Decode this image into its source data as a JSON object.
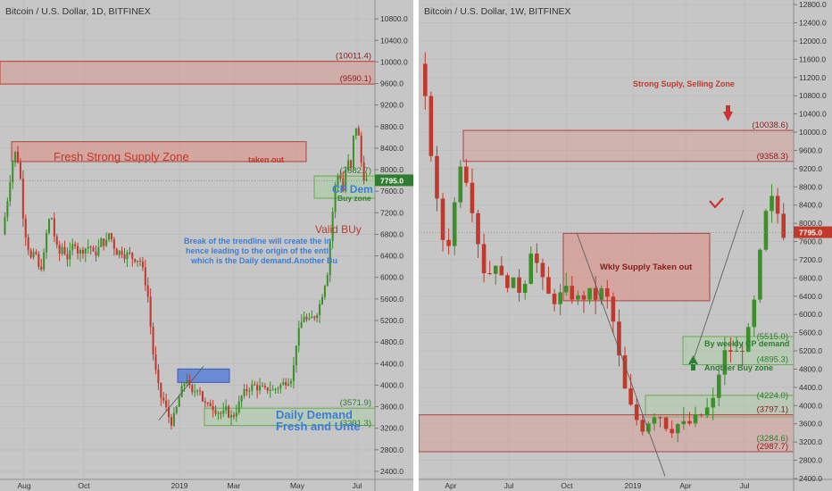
{
  "chart_data": [
    {
      "type": "candlestick",
      "title": "Bitcoin / U.S. Dollar, 1D, BITFINEX",
      "yticks": [
        2400,
        2800,
        3200,
        3600,
        4000,
        4400,
        4800,
        5200,
        5600,
        6000,
        6400,
        6800,
        7200,
        7600,
        8000,
        8400,
        8800,
        9200,
        9600,
        10000,
        10400,
        10800
      ],
      "ytick_labels": [
        "2400.0",
        "2800.0",
        "3200.0",
        "3600.0",
        "4000.0",
        "4400.0",
        "4800.0",
        "5200.0",
        "5600.0",
        "6000.0",
        "6400.0",
        "6800.0",
        "7200.0",
        "7600.0",
        "8000.0",
        "8400.0",
        "8800.0",
        "9200.0",
        "9600.0",
        "10000.0",
        "10400.0",
        "10800.0"
      ],
      "ylim": [
        2250,
        11150
      ],
      "xlabels": [
        "Aug",
        "Oct",
        "2019",
        "Mar",
        "May",
        "Jul"
      ],
      "last_price": 7795.0,
      "last_price_label": "7795.0",
      "level_labels": [
        {
          "text": "(10011.4)",
          "value": 10011.4
        },
        {
          "text": "(9590.1)",
          "value": 9590.1
        },
        {
          "text": "(7882.7)",
          "value": 7882.7
        },
        {
          "text": "(3571.9)",
          "value": 3571.9
        },
        {
          "text": "(3291.3)",
          "value": 3291.3
        }
      ],
      "zones": [
        {
          "name": "top-supply",
          "from": 9590.1,
          "to": 10011.4
        },
        {
          "name": "fresh-supply",
          "from": 8150,
          "to": 8520
        },
        {
          "name": "cp-demand",
          "from": 7470,
          "to": 7882.7
        },
        {
          "name": "range-box",
          "from": 4050,
          "to": 4300
        },
        {
          "name": "daily-demand",
          "from": 3250,
          "to": 3571.9
        }
      ],
      "annotations": [
        {
          "text": "Fresh Strong Supply Zone"
        },
        {
          "text": "taken out"
        },
        {
          "text": "CP Dem"
        },
        {
          "text": "Buy zone"
        },
        {
          "text": "Valid BUy"
        },
        {
          "text": "Break of the trendline will create the in"
        },
        {
          "text": "hence leading to the origin of the entir"
        },
        {
          "text": "which is the Daily demand.Another Bu"
        },
        {
          "text": "Daily Demand"
        },
        {
          "text": "Fresh and Unte"
        }
      ],
      "price_path": [
        [
          0,
          6800
        ],
        [
          5,
          7400
        ],
        [
          10,
          8100
        ],
        [
          14,
          8350
        ],
        [
          18,
          8000
        ],
        [
          22,
          7000
        ],
        [
          26,
          6600
        ],
        [
          30,
          6300
        ],
        [
          34,
          6500
        ],
        [
          38,
          6100
        ],
        [
          42,
          6300
        ],
        [
          46,
          6900
        ],
        [
          50,
          7200
        ],
        [
          54,
          6700
        ],
        [
          58,
          6400
        ],
        [
          62,
          6600
        ],
        [
          66,
          6350
        ],
        [
          70,
          6450
        ],
        [
          74,
          6700
        ],
        [
          78,
          6450
        ],
        [
          82,
          6500
        ],
        [
          86,
          6550
        ],
        [
          90,
          6600
        ],
        [
          94,
          6400
        ],
        [
          98,
          6500
        ],
        [
          102,
          6700
        ],
        [
          106,
          6600
        ],
        [
          110,
          6850
        ],
        [
          114,
          6600
        ],
        [
          118,
          6450
        ],
        [
          122,
          6500
        ],
        [
          126,
          6400
        ],
        [
          130,
          6450
        ],
        [
          134,
          6350
        ],
        [
          138,
          6350
        ],
        [
          142,
          6300
        ],
        [
          146,
          6000
        ],
        [
          150,
          5600
        ],
        [
          154,
          4700
        ],
        [
          158,
          4200
        ],
        [
          162,
          3800
        ],
        [
          166,
          3700
        ],
        [
          170,
          3450
        ],
        [
          174,
          3300
        ],
        [
          178,
          3500
        ],
        [
          182,
          3800
        ],
        [
          186,
          4000
        ],
        [
          190,
          4150
        ],
        [
          194,
          3800
        ],
        [
          198,
          3900
        ],
        [
          202,
          4000
        ],
        [
          206,
          3700
        ],
        [
          210,
          3600
        ],
        [
          214,
          3650
        ],
        [
          218,
          3550
        ],
        [
          222,
          3500
        ],
        [
          226,
          3450
        ],
        [
          230,
          3550
        ],
        [
          234,
          3400
        ],
        [
          238,
          3450
        ],
        [
          242,
          3600
        ],
        [
          246,
          3800
        ],
        [
          250,
          3900
        ],
        [
          254,
          3950
        ],
        [
          258,
          4000
        ],
        [
          262,
          3950
        ],
        [
          266,
          3950
        ],
        [
          270,
          3900
        ],
        [
          274,
          3950
        ],
        [
          278,
          3900
        ],
        [
          282,
          3950
        ],
        [
          286,
          4000
        ],
        [
          290,
          4050
        ],
        [
          294,
          4100
        ],
        [
          298,
          4150
        ],
        [
          302,
          4800
        ],
        [
          306,
          5100
        ],
        [
          310,
          5300
        ],
        [
          314,
          5150
        ],
        [
          318,
          5250
        ],
        [
          322,
          5300
        ],
        [
          326,
          5500
        ],
        [
          330,
          5800
        ],
        [
          334,
          6100
        ],
        [
          338,
          7000
        ],
        [
          342,
          7700
        ],
        [
          346,
          8000
        ],
        [
          350,
          7600
        ],
        [
          354,
          8200
        ],
        [
          358,
          8000
        ],
        [
          362,
          8900
        ],
        [
          366,
          8600
        ],
        [
          370,
          7900
        ],
        [
          374,
          7795
        ]
      ]
    },
    {
      "type": "candlestick",
      "title": "Bitcoin / U.S. Dollar, 1W, BITFINEX",
      "yticks": [
        2400,
        2800,
        3200,
        3600,
        4000,
        4400,
        4800,
        5200,
        5600,
        6000,
        6400,
        6800,
        7200,
        7600,
        8000,
        8400,
        8800,
        9200,
        9600,
        10000,
        10400,
        10800,
        11200,
        11600,
        12000,
        12400,
        12800
      ],
      "ytick_labels": [
        "2400.0",
        "2800.0",
        "3200.0",
        "3600.0",
        "4000.0",
        "4400.0",
        "4800.0",
        "5200.0",
        "5600.0",
        "6000.0",
        "6400.0",
        "6800.0",
        "7200.0",
        "7600.0",
        "8000.0",
        "8400.0",
        "8800.0",
        "9200.0",
        "9600.0",
        "10000.0",
        "10400.0",
        "10800.0",
        "11200.0",
        "11600.0",
        "12000.0",
        "12400.0",
        "12800.0"
      ],
      "ylim": [
        2380,
        12900
      ],
      "xlabels": [
        "Apr",
        "Jul",
        "Oct",
        "2019",
        "Apr",
        "Jul"
      ],
      "last_price": 7795.0,
      "last_price_label": "7795.0",
      "level_labels": [
        {
          "text": "(10038.6)",
          "value": 10038.6
        },
        {
          "text": "(9358.3)",
          "value": 9358.3
        },
        {
          "text": "(5515.0)",
          "value": 5515.0
        },
        {
          "text": "(4895.3)",
          "value": 4895.3
        },
        {
          "text": "(4224.0)",
          "value": 4224.0
        },
        {
          "text": "(3797.1)",
          "value": 3797.1
        },
        {
          "text": "(3284.6)",
          "value": 3284.6
        },
        {
          "text": "(2987.7)",
          "value": 2987.7
        }
      ],
      "zones": [
        {
          "name": "strong-supply",
          "from": 9358.3,
          "to": 10038.6
        },
        {
          "name": "weekly-supply",
          "from": 6300,
          "to": 7780
        },
        {
          "name": "weekly-cp-demand",
          "from": 4895.3,
          "to": 5515.0
        },
        {
          "name": "green-demand",
          "from": 3750,
          "to": 4224.0
        },
        {
          "name": "lower-demand",
          "from": 2987.7,
          "to": 3797.1
        }
      ],
      "annotations": [
        {
          "text": "Strong Suply, Selling Zone"
        },
        {
          "text": "Wkly Supply Taken out"
        },
        {
          "text": "By weekly CP demand"
        },
        {
          "text": "Another Buy zone"
        }
      ],
      "price_path": [
        [
          0,
          11500
        ],
        [
          3,
          10500
        ],
        [
          6,
          9100
        ],
        [
          9,
          7800
        ],
        [
          12,
          7400
        ],
        [
          15,
          8400
        ],
        [
          18,
          9500
        ],
        [
          21,
          8800
        ],
        [
          24,
          8000
        ],
        [
          27,
          7000
        ],
        [
          30,
          6900
        ],
        [
          33,
          7200
        ],
        [
          36,
          6600
        ],
        [
          39,
          6800
        ],
        [
          42,
          6500
        ],
        [
          45,
          6700
        ],
        [
          48,
          7500
        ],
        [
          51,
          7000
        ],
        [
          54,
          6500
        ],
        [
          57,
          6300
        ],
        [
          60,
          6400
        ],
        [
          63,
          6500
        ],
        [
          66,
          6400
        ],
        [
          69,
          6300
        ],
        [
          72,
          6500
        ],
        [
          75,
          6350
        ],
        [
          78,
          6500
        ],
        [
          81,
          6300
        ],
        [
          84,
          5600
        ],
        [
          87,
          4500
        ],
        [
          90,
          4000
        ],
        [
          93,
          3700
        ],
        [
          96,
          3500
        ],
        [
          99,
          3750
        ],
        [
          102,
          3900
        ],
        [
          105,
          3600
        ],
        [
          108,
          3500
        ],
        [
          111,
          3600
        ],
        [
          114,
          3550
        ],
        [
          117,
          3650
        ],
        [
          120,
          3750
        ],
        [
          123,
          3900
        ],
        [
          126,
          4100
        ],
        [
          129,
          4900
        ],
        [
          132,
          5300
        ],
        [
          135,
          5100
        ],
        [
          138,
          5250
        ],
        [
          141,
          5600
        ],
        [
          144,
          6400
        ],
        [
          147,
          7800
        ],
        [
          150,
          8600
        ],
        [
          153,
          8300
        ],
        [
          156,
          7795
        ]
      ]
    }
  ]
}
